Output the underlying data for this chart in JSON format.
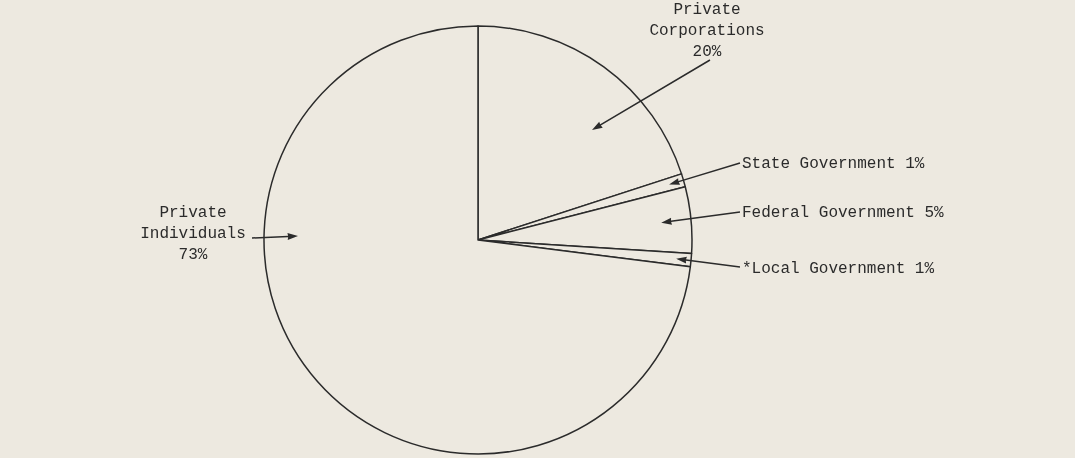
{
  "chart_data": {
    "type": "pie",
    "categories": [
      "Private Corporations",
      "State Government",
      "Federal Government",
      "*Local Government",
      "Private Individuals"
    ],
    "values": [
      20,
      1,
      5,
      1,
      73
    ],
    "colors": [
      "#ede9e0",
      "#ede9e0",
      "#ede9e0",
      "#ede9e0",
      "#ede9e0"
    ],
    "value_labels": [
      "20%",
      "1%",
      "5%",
      "1%",
      "73%"
    ],
    "legend": "right"
  }
}
